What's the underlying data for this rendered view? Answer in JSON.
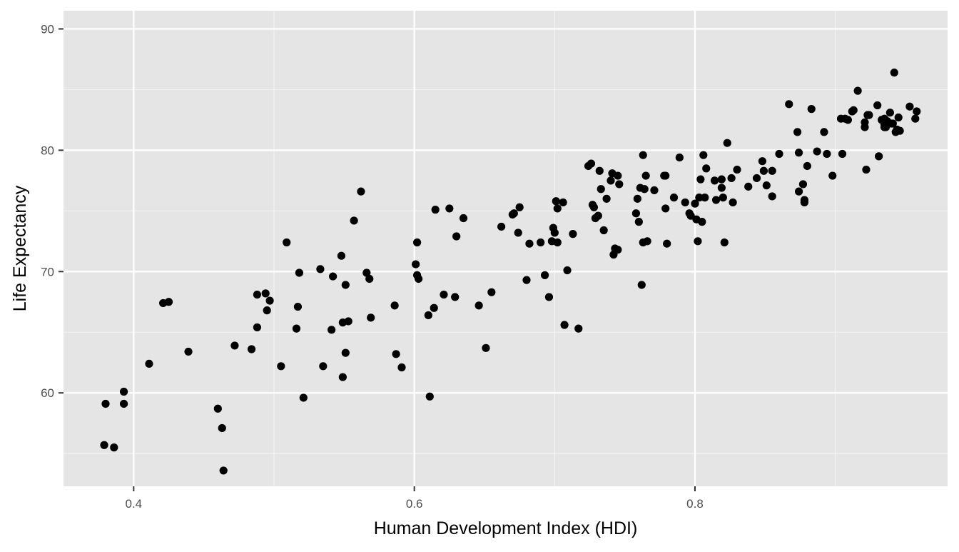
{
  "chart_data": {
    "type": "scatter",
    "title": "",
    "xlabel": "Human Development Index (HDI)",
    "ylabel": "Life Expectancy",
    "xlim": [
      0.35,
      0.98
    ],
    "ylim": [
      52.3,
      91.5
    ],
    "x_ticks": [
      0.4,
      0.6,
      0.8
    ],
    "x_tick_labels": [
      "0.4",
      "0.6",
      "0.8"
    ],
    "y_ticks": [
      60,
      70,
      80,
      90
    ],
    "y_tick_labels": [
      "60",
      "70",
      "80",
      "90"
    ],
    "grid": true,
    "legend": "none",
    "colors": {
      "panel_background": "#e5e5e5",
      "grid_major": "#ffffff",
      "grid_minor": "#f2f2f2",
      "point": "#000000"
    },
    "series": [
      {
        "points": [
          [
            0.379,
            55.7
          ],
          [
            0.38,
            59.1
          ],
          [
            0.386,
            55.5
          ],
          [
            0.393,
            60.1
          ],
          [
            0.393,
            59.1
          ],
          [
            0.411,
            62.4
          ],
          [
            0.421,
            67.4
          ],
          [
            0.425,
            67.5
          ],
          [
            0.439,
            63.4
          ],
          [
            0.46,
            58.7
          ],
          [
            0.463,
            57.1
          ],
          [
            0.464,
            53.6
          ],
          [
            0.472,
            63.9
          ],
          [
            0.484,
            63.6
          ],
          [
            0.488,
            65.4
          ],
          [
            0.488,
            68.1
          ],
          [
            0.494,
            68.2
          ],
          [
            0.495,
            66.8
          ],
          [
            0.497,
            67.6
          ],
          [
            0.505,
            62.2
          ],
          [
            0.509,
            72.4
          ],
          [
            0.516,
            65.3
          ],
          [
            0.517,
            67.1
          ],
          [
            0.518,
            69.9
          ],
          [
            0.521,
            59.6
          ],
          [
            0.533,
            70.2
          ],
          [
            0.535,
            62.2
          ],
          [
            0.541,
            65.2
          ],
          [
            0.542,
            69.6
          ],
          [
            0.548,
            71.3
          ],
          [
            0.549,
            61.3
          ],
          [
            0.549,
            65.8
          ],
          [
            0.551,
            63.3
          ],
          [
            0.551,
            68.9
          ],
          [
            0.553,
            65.9
          ],
          [
            0.557,
            74.2
          ],
          [
            0.562,
            76.6
          ],
          [
            0.566,
            69.9
          ],
          [
            0.568,
            69.4
          ],
          [
            0.569,
            66.2
          ],
          [
            0.586,
            67.2
          ],
          [
            0.587,
            63.2
          ],
          [
            0.591,
            62.1
          ],
          [
            0.601,
            70.6
          ],
          [
            0.602,
            69.7
          ],
          [
            0.602,
            72.4
          ],
          [
            0.603,
            69.4
          ],
          [
            0.61,
            66.4
          ],
          [
            0.611,
            59.7
          ],
          [
            0.614,
            67.0
          ],
          [
            0.615,
            75.1
          ],
          [
            0.621,
            68.1
          ],
          [
            0.625,
            75.2
          ],
          [
            0.629,
            67.9
          ],
          [
            0.63,
            72.9
          ],
          [
            0.635,
            74.4
          ],
          [
            0.646,
            67.2
          ],
          [
            0.651,
            63.7
          ],
          [
            0.655,
            68.3
          ],
          [
            0.662,
            73.7
          ],
          [
            0.67,
            74.7
          ],
          [
            0.671,
            74.8
          ],
          [
            0.674,
            73.2
          ],
          [
            0.675,
            75.3
          ],
          [
            0.68,
            69.3
          ],
          [
            0.682,
            72.3
          ],
          [
            0.69,
            72.4
          ],
          [
            0.693,
            69.7
          ],
          [
            0.696,
            67.9
          ],
          [
            0.698,
            72.5
          ],
          [
            0.699,
            73.6
          ],
          [
            0.7,
            73.2
          ],
          [
            0.701,
            75.8
          ],
          [
            0.702,
            72.4
          ],
          [
            0.702,
            75.2
          ],
          [
            0.706,
            75.7
          ],
          [
            0.707,
            65.6
          ],
          [
            0.709,
            70.1
          ],
          [
            0.713,
            73.1
          ],
          [
            0.717,
            65.3
          ],
          [
            0.724,
            78.7
          ],
          [
            0.726,
            78.9
          ],
          [
            0.727,
            75.5
          ],
          [
            0.728,
            75.3
          ],
          [
            0.729,
            74.4
          ],
          [
            0.731,
            74.6
          ],
          [
            0.732,
            78.3
          ],
          [
            0.733,
            76.8
          ],
          [
            0.735,
            73.4
          ],
          [
            0.737,
            76.0
          ],
          [
            0.74,
            77.5
          ],
          [
            0.741,
            78.1
          ],
          [
            0.742,
            71.4
          ],
          [
            0.743,
            71.9
          ],
          [
            0.745,
            71.8
          ],
          [
            0.745,
            77.9
          ],
          [
            0.746,
            77.2
          ],
          [
            0.758,
            74.8
          ],
          [
            0.759,
            76.0
          ],
          [
            0.76,
            74.1
          ],
          [
            0.761,
            76.9
          ],
          [
            0.762,
            68.9
          ],
          [
            0.763,
            72.4
          ],
          [
            0.763,
            79.6
          ],
          [
            0.764,
            76.8
          ],
          [
            0.765,
            77.9
          ],
          [
            0.766,
            72.5
          ],
          [
            0.771,
            76.7
          ],
          [
            0.778,
            77.9
          ],
          [
            0.779,
            75.2
          ],
          [
            0.779,
            77.9
          ],
          [
            0.78,
            72.3
          ],
          [
            0.785,
            76.1
          ],
          [
            0.789,
            79.4
          ],
          [
            0.793,
            75.7
          ],
          [
            0.796,
            74.8
          ],
          [
            0.797,
            74.6
          ],
          [
            0.8,
            75.6
          ],
          [
            0.801,
            74.3
          ],
          [
            0.802,
            72.5
          ],
          [
            0.803,
            76.1
          ],
          [
            0.804,
            77.6
          ],
          [
            0.805,
            74.1
          ],
          [
            0.806,
            79.6
          ],
          [
            0.807,
            76.1
          ],
          [
            0.808,
            78.5
          ],
          [
            0.814,
            77.5
          ],
          [
            0.815,
            75.9
          ],
          [
            0.819,
            77.6
          ],
          [
            0.819,
            76.9
          ],
          [
            0.82,
            76.1
          ],
          [
            0.821,
            72.4
          ],
          [
            0.823,
            80.6
          ],
          [
            0.826,
            77.7
          ],
          [
            0.827,
            75.7
          ],
          [
            0.83,
            78.4
          ],
          [
            0.838,
            77.0
          ],
          [
            0.844,
            77.7
          ],
          [
            0.848,
            79.1
          ],
          [
            0.849,
            78.3
          ],
          [
            0.851,
            77.1
          ],
          [
            0.855,
            78.3
          ],
          [
            0.855,
            76.2
          ],
          [
            0.86,
            79.7
          ],
          [
            0.867,
            83.8
          ],
          [
            0.873,
            81.5
          ],
          [
            0.874,
            79.8
          ],
          [
            0.874,
            76.6
          ],
          [
            0.877,
            77.2
          ],
          [
            0.878,
            75.9
          ],
          [
            0.878,
            75.7
          ],
          [
            0.88,
            78.7
          ],
          [
            0.883,
            83.4
          ],
          [
            0.887,
            79.9
          ],
          [
            0.892,
            81.5
          ],
          [
            0.894,
            79.7
          ],
          [
            0.898,
            77.9
          ],
          [
            0.904,
            82.6
          ],
          [
            0.905,
            79.7
          ],
          [
            0.907,
            82.6
          ],
          [
            0.909,
            82.5
          ],
          [
            0.912,
            83.2
          ],
          [
            0.913,
            83.3
          ],
          [
            0.916,
            84.9
          ],
          [
            0.921,
            82.3
          ],
          [
            0.921,
            81.9
          ],
          [
            0.922,
            78.4
          ],
          [
            0.923,
            82.9
          ],
          [
            0.924,
            82.9
          ],
          [
            0.93,
            83.7
          ],
          [
            0.931,
            79.5
          ],
          [
            0.933,
            82.5
          ],
          [
            0.935,
            82.6
          ],
          [
            0.935,
            82.1
          ],
          [
            0.935,
            81.9
          ],
          [
            0.936,
            81.9
          ],
          [
            0.937,
            82.4
          ],
          [
            0.939,
            83.1
          ],
          [
            0.94,
            82.2
          ],
          [
            0.941,
            82.2
          ],
          [
            0.942,
            86.4
          ],
          [
            0.943,
            81.5
          ],
          [
            0.944,
            81.7
          ],
          [
            0.945,
            82.7
          ],
          [
            0.946,
            81.6
          ],
          [
            0.953,
            83.6
          ],
          [
            0.957,
            82.6
          ],
          [
            0.958,
            83.2
          ]
        ]
      }
    ]
  }
}
